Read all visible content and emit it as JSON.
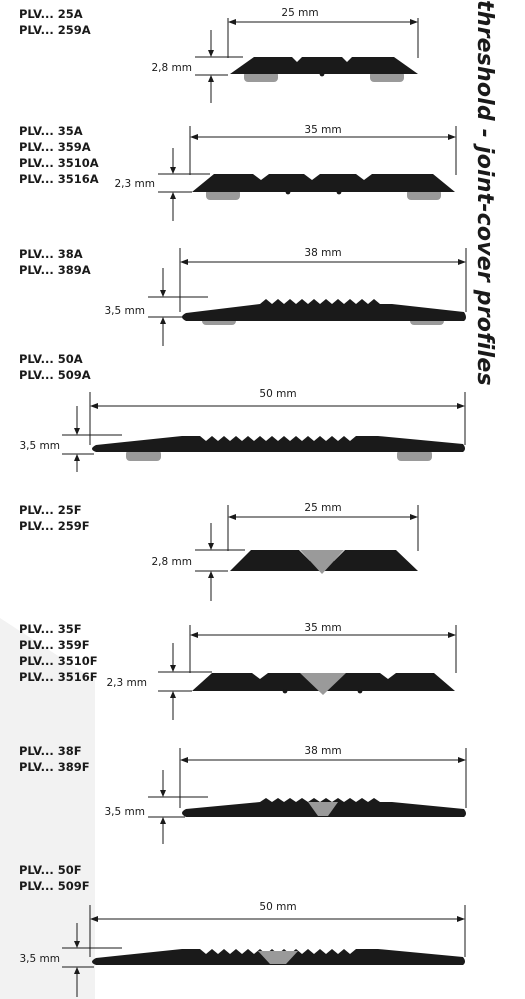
{
  "side_title": "threshold - joint-cover profiles",
  "profiles": [
    {
      "codes": [
        "PLV... 25A",
        "PLV... 259A"
      ],
      "width": "25 mm",
      "height": "2,8 mm"
    },
    {
      "codes": [
        "PLV... 35A",
        "PLV... 359A",
        "PLV... 3510A",
        "PLV... 3516A"
      ],
      "width": "35 mm",
      "height": "2,3 mm"
    },
    {
      "codes": [
        "PLV... 38A",
        "PLV... 389A"
      ],
      "width": "38 mm",
      "height": "3,5 mm"
    },
    {
      "codes": [
        "PLV... 50A",
        "PLV... 509A"
      ],
      "width": "50 mm",
      "height": "3,5 mm"
    },
    {
      "codes": [
        "PLV... 25F",
        "PLV... 259F"
      ],
      "width": "25 mm",
      "height": "2,8 mm"
    },
    {
      "codes": [
        "PLV... 35F",
        "PLV... 359F",
        "PLV... 3510F",
        "PLV... 3516F"
      ],
      "width": "35 mm",
      "height": "2,3 mm"
    },
    {
      "codes": [
        "PLV... 38F",
        "PLV... 389F"
      ],
      "width": "38 mm",
      "height": "3,5 mm"
    },
    {
      "codes": [
        "PLV... 50F",
        "PLV... 509F"
      ],
      "width": "50 mm",
      "height": "3,5 mm"
    }
  ],
  "colors": {
    "profile": "#1a1a1a",
    "insert": "#9a9a9a",
    "line": "#1a1a1a",
    "background_wedge": "#f2f2f2"
  }
}
